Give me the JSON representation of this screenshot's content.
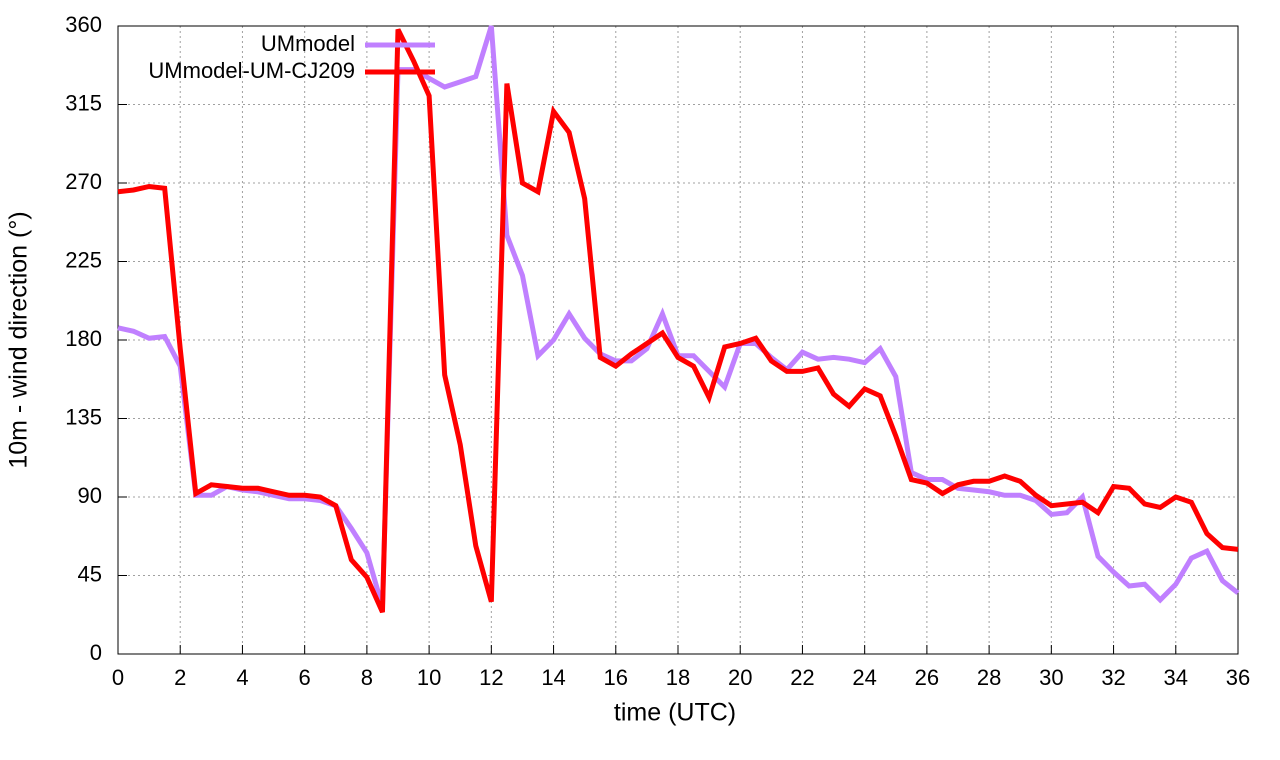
{
  "chart_data": {
    "type": "line",
    "xlabel": "time (UTC)",
    "ylabel": "10m - wind direction (°)",
    "x": [
      0,
      0.5,
      1,
      1.5,
      2,
      2.5,
      3,
      3.5,
      4,
      4.5,
      5,
      5.5,
      6,
      6.5,
      7,
      7.5,
      8,
      8.5,
      9,
      9.5,
      10,
      10.5,
      11,
      11.5,
      12,
      12.5,
      13,
      13.5,
      14,
      14.5,
      15,
      15.5,
      16,
      16.5,
      17,
      17.5,
      18,
      18.5,
      19,
      19.5,
      20,
      20.5,
      21,
      21.5,
      22,
      22.5,
      23,
      23.5,
      24,
      24.5,
      25,
      25.5,
      26,
      26.5,
      27,
      27.5,
      28,
      28.5,
      29,
      29.5,
      30,
      30.5,
      31,
      31.5,
      32,
      32.5,
      33,
      33.5,
      34,
      34.5,
      35,
      35.5,
      36
    ],
    "series": [
      {
        "name": "UMmodel",
        "color": "#c080ff",
        "values": [
          187,
          185,
          181,
          182,
          165,
          91,
          91,
          96,
          94,
          93,
          91,
          89,
          89,
          88,
          85,
          72,
          58,
          27,
          335,
          335,
          330,
          325,
          328,
          331,
          360,
          240,
          217,
          171,
          180,
          195,
          181,
          172,
          168,
          168,
          175,
          195,
          171,
          171,
          162,
          153,
          178,
          178,
          170,
          163,
          173,
          169,
          170,
          169,
          167,
          175,
          159,
          104,
          100,
          100,
          95,
          94,
          93,
          91,
          91,
          88,
          80,
          81,
          90,
          56,
          47,
          39,
          40,
          31,
          40,
          55,
          59,
          42,
          35
        ]
      },
      {
        "name": "UMmodel-UM-CJ209",
        "color": "#ff0000",
        "values": [
          265,
          266,
          268,
          267,
          175,
          92,
          97,
          96,
          95,
          95,
          93,
          91,
          91,
          90,
          85,
          54,
          44,
          24,
          358,
          340,
          320,
          160,
          120,
          62,
          30,
          327,
          270,
          265,
          311,
          299,
          261,
          170,
          165,
          172,
          178,
          184,
          170,
          165,
          147,
          176,
          178,
          181,
          168,
          162,
          162,
          164,
          149,
          142,
          152,
          148,
          125,
          100,
          98,
          92,
          97,
          99,
          99,
          102,
          99,
          91,
          85,
          86,
          87,
          81,
          96,
          95,
          86,
          84,
          90,
          87,
          69,
          61,
          60
        ]
      }
    ],
    "xlim": [
      0,
      36
    ],
    "xticks": [
      0,
      2,
      4,
      6,
      8,
      10,
      12,
      14,
      16,
      18,
      20,
      22,
      24,
      26,
      28,
      30,
      32,
      34,
      36
    ],
    "ylim": [
      0,
      360
    ],
    "yticks": [
      0,
      45,
      90,
      135,
      180,
      225,
      270,
      315,
      360
    ],
    "grid": true,
    "legend": "top left"
  }
}
